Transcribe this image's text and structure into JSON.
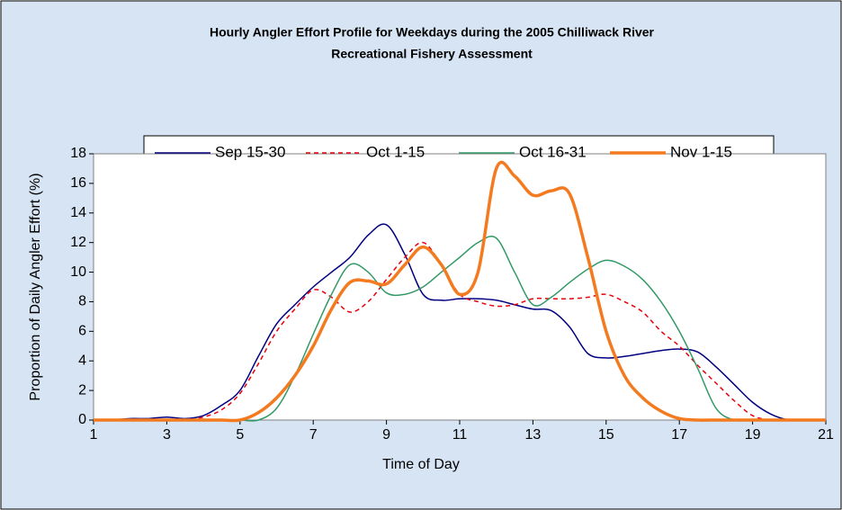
{
  "chart_data": {
    "type": "line",
    "title": "Hourly Angler Effort Profile for Weekdays during the 2005 Chilliwack River",
    "subtitle": "Recreational Fishery Assessment",
    "x_label": "Time of Day",
    "y_label": "Proportion of Daily Angler Effort (%)",
    "x": [
      1,
      1.5,
      2,
      2.5,
      3,
      3.5,
      4,
      4.5,
      5,
      5.5,
      6,
      6.5,
      7,
      7.5,
      8,
      8.5,
      9,
      9.5,
      10,
      10.5,
      11,
      11.5,
      12,
      12.5,
      13,
      13.5,
      14,
      14.5,
      15,
      15.5,
      16,
      16.5,
      17,
      17.5,
      18,
      18.5,
      19,
      19.5,
      20,
      20.5,
      21
    ],
    "series": [
      {
        "name": "Sep 15-30",
        "color": "#000080",
        "width": 1.5,
        "dash": "solid",
        "values": [
          0,
          0,
          0.1,
          0.1,
          0.2,
          0.1,
          0.3,
          1,
          2,
          4.3,
          6.5,
          7.8,
          9,
          10,
          11,
          12.5,
          13.2,
          11.2,
          8.5,
          8.1,
          8.2,
          8.2,
          8.1,
          7.8,
          7.5,
          7.4,
          6.3,
          4.5,
          4.2,
          4.3,
          4.5,
          4.7,
          4.8,
          4.6,
          3.6,
          2.4,
          1.2,
          0.4,
          0,
          0,
          0
        ]
      },
      {
        "name": "Oct 1-15",
        "color": "#e8000b",
        "width": 1.5,
        "dash": "dashed",
        "values": [
          0,
          0,
          0,
          0,
          0,
          0,
          0.2,
          0.7,
          1.8,
          3.8,
          6,
          7.5,
          8.8,
          8.3,
          7.3,
          8,
          9.5,
          11,
          12,
          10.5,
          8.5,
          8,
          7.7,
          7.8,
          8.2,
          8.2,
          8.2,
          8.3,
          8.5,
          8,
          7.3,
          6,
          5,
          3.7,
          2.5,
          1.3,
          0.3,
          0,
          0,
          0,
          0
        ]
      },
      {
        "name": "Oct 16-31",
        "color": "#339966",
        "width": 1.5,
        "dash": "solid",
        "values": [
          0,
          0,
          0,
          0,
          0,
          0,
          0,
          0,
          0,
          0,
          0.8,
          3,
          5.8,
          8.5,
          10.5,
          10,
          8.6,
          8.5,
          9,
          10,
          11,
          12,
          12.3,
          10,
          7.8,
          8.3,
          9.3,
          10.2,
          10.8,
          10.4,
          9.5,
          8,
          6,
          3.5,
          0.8,
          0,
          0,
          0,
          0,
          0,
          0
        ]
      },
      {
        "name": "Nov 1-15",
        "color": "#f47a1f",
        "width": 3.5,
        "dash": "solid",
        "values": [
          0,
          0,
          0,
          0,
          0,
          0,
          0,
          0,
          0,
          0.5,
          1.5,
          3,
          5,
          7.5,
          9.3,
          9.4,
          9.2,
          10.5,
          11.7,
          10.5,
          8.5,
          10,
          17,
          16.5,
          15.2,
          15.5,
          15.3,
          11,
          6,
          3,
          1.5,
          0.6,
          0.1,
          0,
          0,
          0,
          0,
          0,
          0,
          0,
          0
        ]
      }
    ],
    "xlim": [
      1,
      21
    ],
    "xticks": [
      1,
      3,
      5,
      7,
      9,
      11,
      13,
      15,
      17,
      19,
      21
    ],
    "ylim": [
      0,
      18
    ],
    "yticks": [
      0,
      2,
      4,
      6,
      8,
      10,
      12,
      14,
      16,
      18
    ],
    "grid": false,
    "legend": "top"
  }
}
